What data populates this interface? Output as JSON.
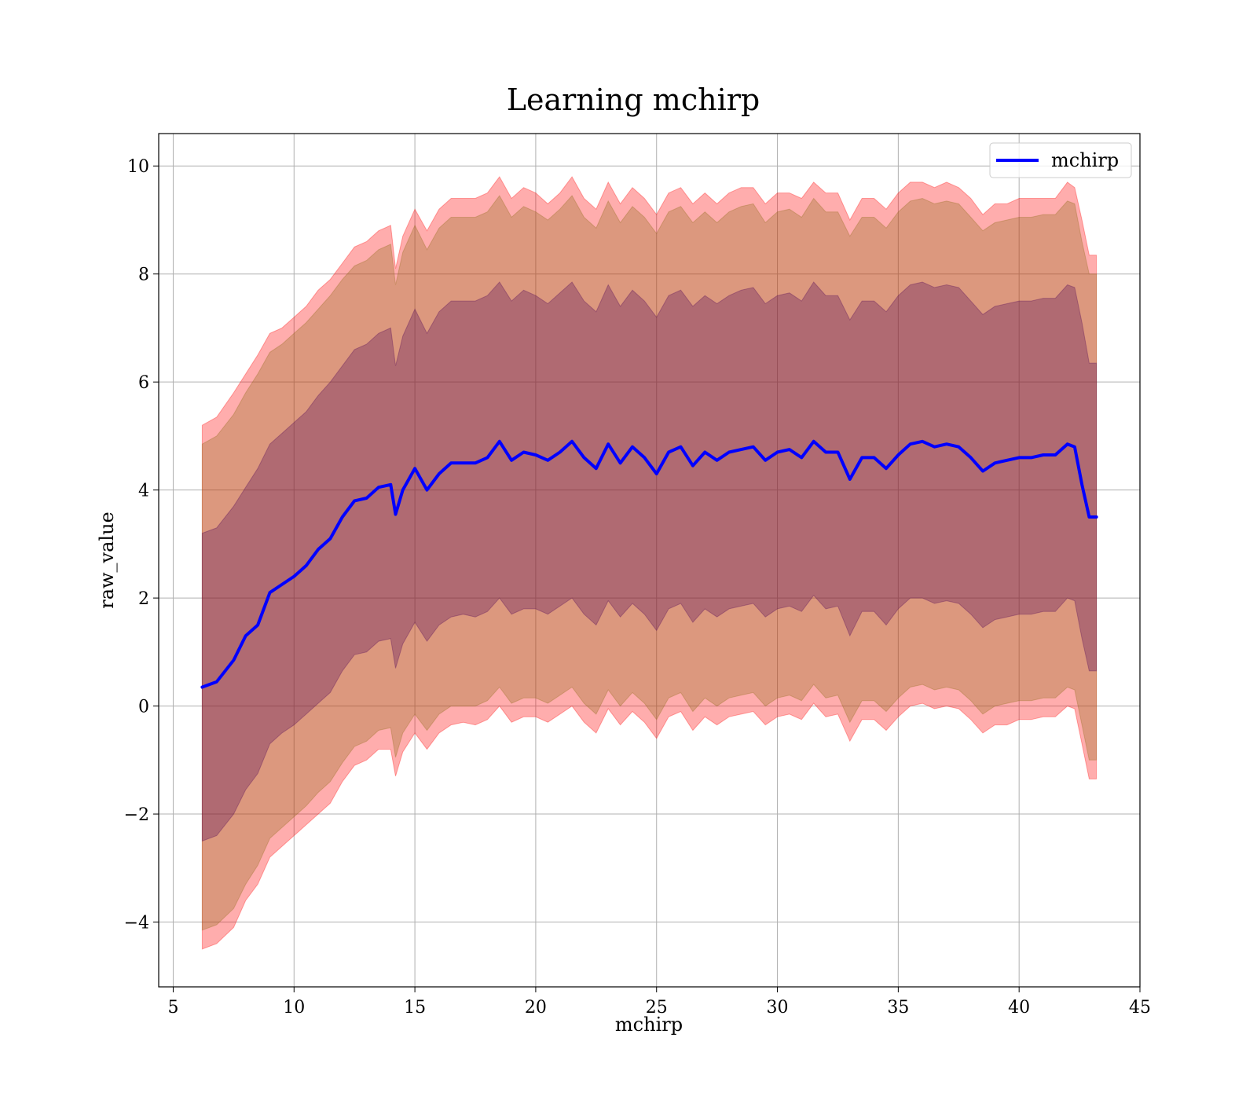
{
  "chart_data": {
    "type": "line",
    "title": "Learning mchirp",
    "xlabel": "mchirp",
    "ylabel": "raw_value",
    "xlim": [
      4.4,
      45
    ],
    "ylim": [
      -5.2,
      10.6
    ],
    "xticks": [
      5,
      10,
      15,
      20,
      25,
      30,
      35,
      40,
      45
    ],
    "yticks": [
      -4,
      -2,
      0,
      2,
      4,
      6,
      8,
      10
    ],
    "ytick_labels": [
      "−4",
      "−2",
      "0",
      "2",
      "4",
      "6",
      "8",
      "10"
    ],
    "grid": true,
    "legend_position": "top-right",
    "series": [
      {
        "name": "mchirp",
        "color": "#0000ff",
        "x": [
          6.2,
          6.8,
          7.5,
          8.0,
          8.5,
          9.0,
          9.5,
          10.0,
          10.5,
          11.0,
          11.5,
          12.0,
          12.5,
          13.0,
          13.5,
          14.0,
          14.2,
          14.5,
          15.0,
          15.5,
          16.0,
          16.5,
          17.0,
          17.5,
          18.0,
          18.5,
          19.0,
          19.5,
          20.0,
          20.5,
          21.0,
          21.5,
          22.0,
          22.5,
          23.0,
          23.5,
          24.0,
          24.5,
          25.0,
          25.5,
          26.0,
          26.5,
          27.0,
          27.5,
          28.0,
          28.5,
          29.0,
          29.5,
          30.0,
          30.5,
          31.0,
          31.5,
          32.0,
          32.5,
          33.0,
          33.5,
          34.0,
          34.5,
          35.0,
          35.5,
          36.0,
          36.5,
          37.0,
          37.5,
          38.0,
          38.5,
          39.0,
          39.5,
          40.0,
          40.5,
          41.0,
          41.5,
          42.0,
          42.3,
          42.6,
          42.9,
          43.2
        ],
        "y": [
          0.35,
          0.45,
          0.85,
          1.3,
          1.5,
          2.1,
          2.25,
          2.4,
          2.6,
          2.9,
          3.1,
          3.5,
          3.8,
          3.85,
          4.05,
          4.1,
          3.55,
          4.0,
          4.4,
          4.0,
          4.3,
          4.5,
          4.5,
          4.5,
          4.6,
          4.9,
          4.55,
          4.7,
          4.65,
          4.55,
          4.7,
          4.9,
          4.6,
          4.4,
          4.85,
          4.5,
          4.8,
          4.6,
          4.3,
          4.7,
          4.8,
          4.45,
          4.7,
          4.55,
          4.7,
          4.75,
          4.8,
          4.55,
          4.7,
          4.75,
          4.6,
          4.9,
          4.7,
          4.7,
          4.2,
          4.6,
          4.6,
          4.4,
          4.65,
          4.85,
          4.9,
          4.8,
          4.85,
          4.8,
          4.6,
          4.35,
          4.5,
          4.55,
          4.6,
          4.6,
          4.65,
          4.65,
          4.85,
          4.8,
          4.1,
          3.5,
          3.5
        ]
      }
    ],
    "bands": [
      {
        "role": "outer",
        "color": "#ff0000",
        "opacity": 0.32,
        "x": [
          6.2,
          6.8,
          7.5,
          8.0,
          8.5,
          9.0,
          9.5,
          10.0,
          10.5,
          11.0,
          11.5,
          12.0,
          12.5,
          13.0,
          13.5,
          14.0,
          14.2,
          14.5,
          15.0,
          15.5,
          16.0,
          16.5,
          17.0,
          17.5,
          18.0,
          18.5,
          19.0,
          19.5,
          20.0,
          20.5,
          21.0,
          21.5,
          22.0,
          22.5,
          23.0,
          23.5,
          24.0,
          24.5,
          25.0,
          25.5,
          26.0,
          26.5,
          27.0,
          27.5,
          28.0,
          28.5,
          29.0,
          29.5,
          30.0,
          30.5,
          31.0,
          31.5,
          32.0,
          32.5,
          33.0,
          33.5,
          34.0,
          34.5,
          35.0,
          35.5,
          36.0,
          36.5,
          37.0,
          37.5,
          38.0,
          38.5,
          39.0,
          39.5,
          40.0,
          40.5,
          41.0,
          41.5,
          42.0,
          42.3,
          42.6,
          42.9,
          43.2
        ],
        "upper": [
          5.2,
          5.35,
          5.8,
          6.15,
          6.5,
          6.9,
          7.0,
          7.2,
          7.4,
          7.7,
          7.9,
          8.2,
          8.5,
          8.6,
          8.8,
          8.9,
          8.1,
          8.7,
          9.2,
          8.8,
          9.2,
          9.4,
          9.4,
          9.4,
          9.5,
          9.8,
          9.4,
          9.6,
          9.5,
          9.3,
          9.5,
          9.8,
          9.4,
          9.2,
          9.7,
          9.3,
          9.6,
          9.4,
          9.1,
          9.5,
          9.6,
          9.3,
          9.5,
          9.3,
          9.5,
          9.6,
          9.6,
          9.3,
          9.5,
          9.5,
          9.4,
          9.7,
          9.5,
          9.5,
          9.0,
          9.4,
          9.4,
          9.2,
          9.5,
          9.7,
          9.7,
          9.6,
          9.7,
          9.6,
          9.4,
          9.1,
          9.3,
          9.3,
          9.4,
          9.4,
          9.4,
          9.4,
          9.7,
          9.6,
          9.0,
          8.35,
          8.35
        ],
        "lower": [
          -4.5,
          -4.4,
          -4.1,
          -3.6,
          -3.3,
          -2.8,
          -2.6,
          -2.4,
          -2.2,
          -2.0,
          -1.8,
          -1.4,
          -1.1,
          -1.0,
          -0.8,
          -0.8,
          -1.3,
          -0.85,
          -0.5,
          -0.8,
          -0.5,
          -0.35,
          -0.3,
          -0.35,
          -0.25,
          0.0,
          -0.3,
          -0.2,
          -0.2,
          -0.3,
          -0.15,
          0.0,
          -0.3,
          -0.5,
          -0.05,
          -0.35,
          -0.1,
          -0.3,
          -0.6,
          -0.2,
          -0.1,
          -0.45,
          -0.2,
          -0.35,
          -0.2,
          -0.15,
          -0.1,
          -0.35,
          -0.2,
          -0.15,
          -0.25,
          0.05,
          -0.2,
          -0.15,
          -0.65,
          -0.25,
          -0.25,
          -0.45,
          -0.2,
          0.0,
          0.05,
          -0.05,
          0.0,
          -0.05,
          -0.25,
          -0.5,
          -0.35,
          -0.35,
          -0.25,
          -0.25,
          -0.2,
          -0.2,
          0.0,
          -0.05,
          -0.7,
          -1.35,
          -1.35
        ]
      },
      {
        "role": "middle",
        "color": "#8b6914",
        "opacity": 0.3,
        "x": [
          6.2,
          6.8,
          7.5,
          8.0,
          8.5,
          9.0,
          9.5,
          10.0,
          10.5,
          11.0,
          11.5,
          12.0,
          12.5,
          13.0,
          13.5,
          14.0,
          14.2,
          14.5,
          15.0,
          15.5,
          16.0,
          16.5,
          17.0,
          17.5,
          18.0,
          18.5,
          19.0,
          19.5,
          20.0,
          20.5,
          21.0,
          21.5,
          22.0,
          22.5,
          23.0,
          23.5,
          24.0,
          24.5,
          25.0,
          25.5,
          26.0,
          26.5,
          27.0,
          27.5,
          28.0,
          28.5,
          29.0,
          29.5,
          30.0,
          30.5,
          31.0,
          31.5,
          32.0,
          32.5,
          33.0,
          33.5,
          34.0,
          34.5,
          35.0,
          35.5,
          36.0,
          36.5,
          37.0,
          37.5,
          38.0,
          38.5,
          39.0,
          39.5,
          40.0,
          40.5,
          41.0,
          41.5,
          42.0,
          42.3,
          42.6,
          42.9,
          43.2
        ],
        "upper": [
          4.85,
          5.0,
          5.4,
          5.8,
          6.15,
          6.55,
          6.7,
          6.9,
          7.1,
          7.35,
          7.6,
          7.9,
          8.15,
          8.25,
          8.45,
          8.55,
          7.8,
          8.4,
          8.9,
          8.45,
          8.85,
          9.05,
          9.05,
          9.05,
          9.15,
          9.45,
          9.05,
          9.25,
          9.15,
          9.0,
          9.2,
          9.45,
          9.05,
          8.85,
          9.35,
          8.95,
          9.25,
          9.05,
          8.75,
          9.15,
          9.25,
          8.95,
          9.15,
          8.95,
          9.15,
          9.25,
          9.3,
          8.95,
          9.15,
          9.2,
          9.05,
          9.4,
          9.15,
          9.15,
          8.7,
          9.05,
          9.05,
          8.85,
          9.15,
          9.35,
          9.4,
          9.3,
          9.35,
          9.3,
          9.05,
          8.8,
          8.95,
          9.0,
          9.05,
          9.05,
          9.1,
          9.1,
          9.35,
          9.3,
          8.6,
          8.0,
          8.0
        ],
        "lower": [
          -4.15,
          -4.05,
          -3.75,
          -3.3,
          -2.95,
          -2.45,
          -2.25,
          -2.05,
          -1.85,
          -1.6,
          -1.4,
          -1.05,
          -0.75,
          -0.65,
          -0.45,
          -0.4,
          -0.95,
          -0.5,
          -0.15,
          -0.45,
          -0.15,
          0.0,
          0.0,
          0.0,
          0.1,
          0.35,
          0.05,
          0.15,
          0.15,
          0.05,
          0.2,
          0.35,
          0.05,
          -0.15,
          0.3,
          0.0,
          0.25,
          0.05,
          -0.25,
          0.15,
          0.25,
          -0.1,
          0.15,
          0.0,
          0.15,
          0.2,
          0.25,
          0.0,
          0.15,
          0.2,
          0.1,
          0.4,
          0.15,
          0.2,
          -0.3,
          0.1,
          0.1,
          -0.1,
          0.15,
          0.35,
          0.4,
          0.3,
          0.35,
          0.3,
          0.1,
          -0.15,
          0.0,
          0.05,
          0.1,
          0.1,
          0.15,
          0.15,
          0.35,
          0.3,
          -0.35,
          -1.0,
          -1.0
        ]
      },
      {
        "role": "inner",
        "color": "#4b0055",
        "opacity": 0.3,
        "x": [
          6.2,
          6.8,
          7.5,
          8.0,
          8.5,
          9.0,
          9.5,
          10.0,
          10.5,
          11.0,
          11.5,
          12.0,
          12.5,
          13.0,
          13.5,
          14.0,
          14.2,
          14.5,
          15.0,
          15.5,
          16.0,
          16.5,
          17.0,
          17.5,
          18.0,
          18.5,
          19.0,
          19.5,
          20.0,
          20.5,
          21.0,
          21.5,
          22.0,
          22.5,
          23.0,
          23.5,
          24.0,
          24.5,
          25.0,
          25.5,
          26.0,
          26.5,
          27.0,
          27.5,
          28.0,
          28.5,
          29.0,
          29.5,
          30.0,
          30.5,
          31.0,
          31.5,
          32.0,
          32.5,
          33.0,
          33.5,
          34.0,
          34.5,
          35.0,
          35.5,
          36.0,
          36.5,
          37.0,
          37.5,
          38.0,
          38.5,
          39.0,
          39.5,
          40.0,
          40.5,
          41.0,
          41.5,
          42.0,
          42.3,
          42.6,
          42.9,
          43.2
        ],
        "upper": [
          3.2,
          3.3,
          3.7,
          4.05,
          4.4,
          4.85,
          5.05,
          5.25,
          5.45,
          5.75,
          6.0,
          6.3,
          6.6,
          6.7,
          6.9,
          7.0,
          6.3,
          6.85,
          7.35,
          6.9,
          7.3,
          7.5,
          7.5,
          7.5,
          7.6,
          7.85,
          7.5,
          7.7,
          7.6,
          7.45,
          7.65,
          7.85,
          7.5,
          7.3,
          7.8,
          7.4,
          7.7,
          7.5,
          7.2,
          7.6,
          7.7,
          7.4,
          7.6,
          7.45,
          7.6,
          7.7,
          7.75,
          7.45,
          7.6,
          7.65,
          7.5,
          7.85,
          7.6,
          7.6,
          7.15,
          7.5,
          7.5,
          7.3,
          7.6,
          7.8,
          7.85,
          7.75,
          7.8,
          7.75,
          7.5,
          7.25,
          7.4,
          7.45,
          7.5,
          7.5,
          7.55,
          7.55,
          7.8,
          7.75,
          7.1,
          6.35,
          6.35
        ],
        "lower": [
          -2.5,
          -2.4,
          -2.0,
          -1.55,
          -1.25,
          -0.7,
          -0.5,
          -0.35,
          -0.15,
          0.05,
          0.25,
          0.65,
          0.95,
          1.0,
          1.2,
          1.25,
          0.7,
          1.15,
          1.55,
          1.2,
          1.5,
          1.65,
          1.7,
          1.65,
          1.75,
          2.0,
          1.7,
          1.8,
          1.8,
          1.7,
          1.85,
          2.0,
          1.7,
          1.5,
          1.95,
          1.65,
          1.9,
          1.7,
          1.4,
          1.8,
          1.9,
          1.55,
          1.8,
          1.65,
          1.8,
          1.85,
          1.9,
          1.65,
          1.8,
          1.85,
          1.75,
          2.05,
          1.8,
          1.85,
          1.3,
          1.75,
          1.75,
          1.5,
          1.8,
          2.0,
          2.0,
          1.9,
          1.95,
          1.9,
          1.7,
          1.45,
          1.6,
          1.65,
          1.7,
          1.7,
          1.75,
          1.75,
          2.0,
          1.95,
          1.25,
          0.65,
          0.65
        ]
      }
    ]
  }
}
